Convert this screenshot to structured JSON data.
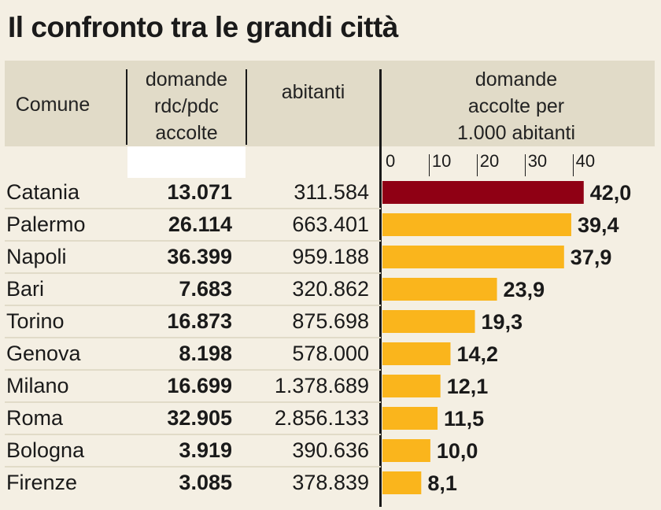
{
  "title": "Il confronto tra le grandi città",
  "headers": {
    "comune": "Comune",
    "domande": "domande\nrdc/pdc\naccolte",
    "abitanti": "abitanti",
    "rate": "domande\naccolte per\n1.000 abitanti"
  },
  "colors": {
    "highlight": "#8f0014",
    "bar": "#fab51c",
    "band": "#e1dbc8",
    "background": "#f4efe3"
  },
  "rows": [
    {
      "city": "Catania",
      "domande": "13.071",
      "abitanti": "311.584",
      "rate": "42,0"
    },
    {
      "city": "Palermo",
      "domande": "26.114",
      "abitanti": "663.401",
      "rate": "39,4"
    },
    {
      "city": "Napoli",
      "domande": "36.399",
      "abitanti": "959.188",
      "rate": "37,9"
    },
    {
      "city": "Bari",
      "domande": "7.683",
      "abitanti": "320.862",
      "rate": "23,9"
    },
    {
      "city": "Torino",
      "domande": "16.873",
      "abitanti": "875.698",
      "rate": "19,3"
    },
    {
      "city": "Genova",
      "domande": "8.198",
      "abitanti": "578.000",
      "rate": "14,2"
    },
    {
      "city": "Milano",
      "domande": "16.699",
      "abitanti": "1.378.689",
      "rate": "12,1"
    },
    {
      "city": "Roma",
      "domande": "32.905",
      "abitanti": "2.856.133",
      "rate": "11,5"
    },
    {
      "city": "Bologna",
      "domande": "3.919",
      "abitanti": "390.636",
      "rate": "10,0"
    },
    {
      "city": "Firenze",
      "domande": "3.085",
      "abitanti": "378.839",
      "rate": "8,1"
    }
  ],
  "chart_data": {
    "type": "bar",
    "orientation": "horizontal",
    "title": "domande accolte per 1.000 abitanti",
    "categories": [
      "Catania",
      "Palermo",
      "Napoli",
      "Bari",
      "Torino",
      "Genova",
      "Milano",
      "Roma",
      "Bologna",
      "Firenze"
    ],
    "values": [
      42.0,
      39.4,
      37.9,
      23.9,
      19.3,
      14.2,
      12.1,
      11.5,
      10.0,
      8.1
    ],
    "value_labels": [
      "42,0",
      "39,4",
      "37,9",
      "23,9",
      "19,3",
      "14,2",
      "12,1",
      "11,5",
      "10,0",
      "8,1"
    ],
    "xlim": [
      0,
      42
    ],
    "ticks": [
      0,
      10,
      20,
      30,
      40
    ],
    "tick_labels": [
      "0",
      "10",
      "20",
      "30",
      "40"
    ],
    "highlight_index": 0,
    "grid": false
  }
}
